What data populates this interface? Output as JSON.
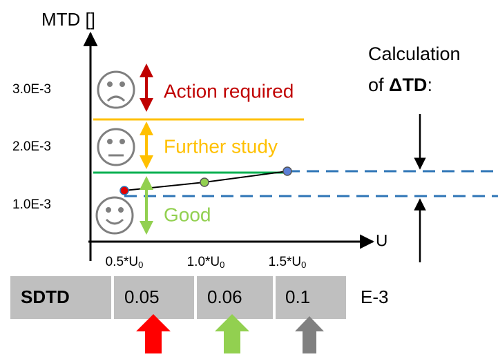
{
  "axes": {
    "y_label": "MTD []",
    "x_label": "U",
    "y_ticks": [
      "3.0E-3",
      "2.0E-3",
      "1.0E-3"
    ],
    "x_ticks": [
      {
        "text": "0.5*U",
        "sub": "0"
      },
      {
        "text": "1.0*U",
        "sub": "0"
      },
      {
        "text": "1.5*U",
        "sub": "0"
      }
    ]
  },
  "zones": [
    {
      "label": "Action required"
    },
    {
      "label": "Further study"
    },
    {
      "label": "Good"
    }
  ],
  "calculation": {
    "line1": "Calculation",
    "prefix": "of ",
    "symbol": "ΔTD",
    "suffix": ":"
  },
  "table": {
    "header": "SDTD",
    "cells": [
      "0.05",
      "0.06",
      "0.1"
    ],
    "unit": "E-3"
  }
}
